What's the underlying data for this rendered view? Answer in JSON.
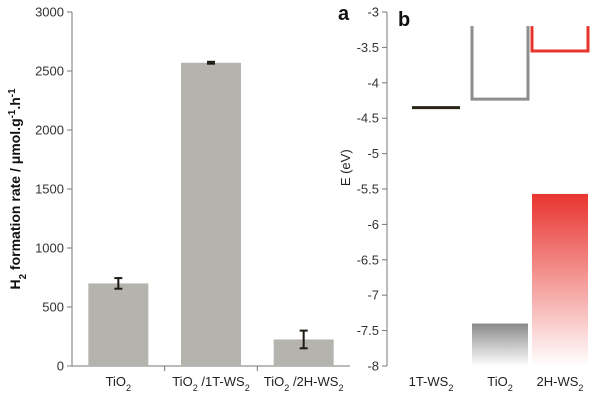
{
  "chart_data": [
    {
      "type": "bar",
      "panel_label": "a",
      "ylabel": "H$2 formation rate / μmol.g$-1.h$-1",
      "ylim": [
        0,
        3000
      ],
      "yticks": [
        0,
        500,
        1000,
        1500,
        2000,
        2500,
        3000
      ],
      "categories": [
        "TiO$2",
        "TiO$2 /1T-WS$2",
        "TiO$2 /2H-WS$2"
      ],
      "values": [
        700,
        2570,
        225
      ],
      "errors": [
        45,
        8,
        75
      ],
      "bar_color": "#b4b3ae",
      "error_color": "#1e1a14",
      "grid": false
    },
    {
      "type": "bar",
      "panel_label": "b",
      "ylabel": "E (eV)",
      "ylim": [
        -8,
        -3
      ],
      "yticks": [
        -3,
        -3.5,
        -4,
        -4.5,
        -5,
        -5.5,
        -6,
        -6.5,
        -7,
        -7.5,
        -8
      ],
      "categories": [
        "1T-WS$2",
        "TiO$2",
        "2H-WS$2"
      ],
      "levels": [
        {
          "category": "1T-WS$2",
          "kind": "line",
          "value": -4.35,
          "color": "#2a2418"
        },
        {
          "category": "TiO$2",
          "kind": "conduction-band-outline",
          "bottom": -4.23,
          "color": "#8e8e8e"
        },
        {
          "category": "2H-WS$2",
          "kind": "conduction-band-outline",
          "bottom": -3.55,
          "color": "#e8342f"
        },
        {
          "category": "TiO$2",
          "kind": "valence-band-gradient",
          "top": -7.4,
          "color": "#8a8a8a"
        },
        {
          "category": "2H-WS$2",
          "kind": "valence-band-gradient",
          "top": -5.57,
          "color": "#e8342f"
        }
      ],
      "grid": false
    }
  ]
}
